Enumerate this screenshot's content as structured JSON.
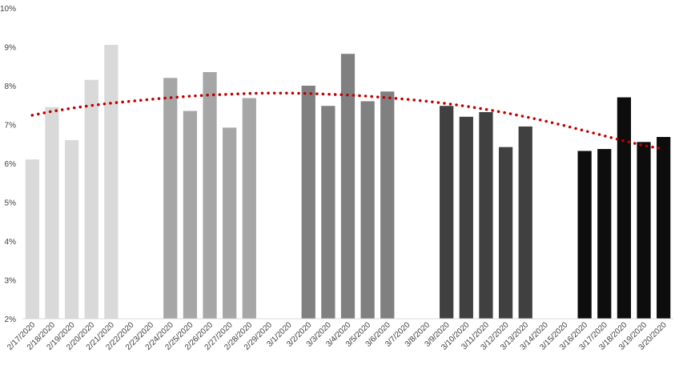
{
  "chart_data": {
    "type": "bar",
    "title": "",
    "xlabel": "",
    "ylabel": "",
    "ylim": [
      2,
      10
    ],
    "y_ticks": [
      "2%",
      "3%",
      "4%",
      "5%",
      "6%",
      "7%",
      "8%",
      "9%",
      "10%"
    ],
    "grid": false,
    "legend": "none",
    "categories": [
      "2/17/2020",
      "2/18/2020",
      "2/19/2020",
      "2/20/2020",
      "2/21/2020",
      "2/22/2020",
      "2/23/2020",
      "2/24/2020",
      "2/25/2020",
      "2/26/2020",
      "2/27/2020",
      "2/28/2020",
      "2/29/2020",
      "3/1/2020",
      "3/2/2020",
      "3/3/2020",
      "3/4/2020",
      "3/5/2020",
      "3/6/2020",
      "3/7/2020",
      "3/8/2020",
      "3/9/2020",
      "3/10/2020",
      "3/11/2020",
      "3/12/2020",
      "3/13/2020",
      "3/14/2020",
      "3/15/2020",
      "3/16/2020",
      "3/17/2020",
      "3/18/2020",
      "3/19/2020",
      "3/20/2020"
    ],
    "values": [
      6.1,
      7.45,
      6.6,
      8.15,
      9.05,
      null,
      null,
      8.2,
      7.35,
      8.35,
      6.92,
      7.68,
      null,
      null,
      8.0,
      7.48,
      8.82,
      7.6,
      7.85,
      null,
      null,
      7.48,
      7.2,
      7.32,
      6.42,
      6.95,
      null,
      null,
      6.32,
      6.37,
      7.7,
      6.55,
      6.68
    ],
    "bar_colors": [
      "#d9d9d9",
      "#d9d9d9",
      "#d9d9d9",
      "#d9d9d9",
      "#d9d9d9",
      "#d9d9d9",
      "#d9d9d9",
      "#a6a6a6",
      "#a6a6a6",
      "#a6a6a6",
      "#a6a6a6",
      "#a6a6a6",
      "#a6a6a6",
      "#a6a6a6",
      "#808080",
      "#808080",
      "#808080",
      "#808080",
      "#808080",
      "#808080",
      "#808080",
      "#404040",
      "#404040",
      "#404040",
      "#404040",
      "#404040",
      "#404040",
      "#404040",
      "#0d0d0d",
      "#0d0d0d",
      "#0d0d0d",
      "#0d0d0d",
      "#0d0d0d"
    ],
    "trendline": {
      "type": "polynomial",
      "style": "dotted",
      "color": "#c00000",
      "values": [
        7.24,
        7.34,
        7.42,
        7.49,
        7.55,
        7.6,
        7.65,
        7.69,
        7.73,
        7.76,
        7.78,
        7.8,
        7.81,
        7.81,
        7.8,
        7.78,
        7.76,
        7.73,
        7.69,
        7.65,
        7.6,
        7.54,
        7.47,
        7.39,
        7.3,
        7.2,
        7.09,
        6.97,
        6.84,
        6.71,
        6.58,
        6.46,
        6.37
      ]
    }
  }
}
